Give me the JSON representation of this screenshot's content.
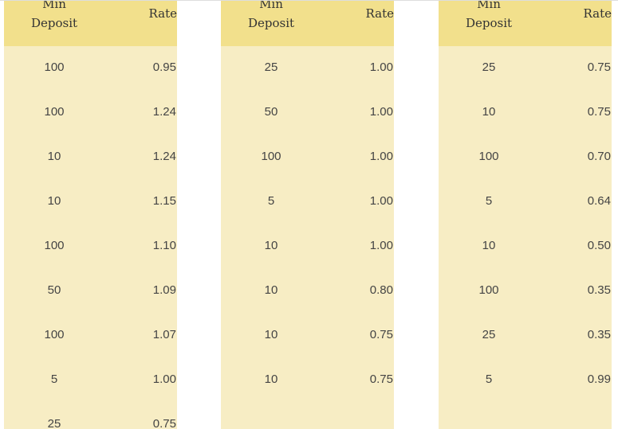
{
  "tables": [
    {
      "header": [
        "Min Deposit",
        "Rate"
      ],
      "rows": [
        [
          "100",
          "0.95"
        ],
        [
          "100",
          "1.24"
        ],
        [
          "10",
          "1.24"
        ],
        [
          "10",
          "1.15"
        ],
        [
          "100",
          "1.10"
        ],
        [
          "50",
          "1.09"
        ],
        [
          "100",
          "1.07"
        ],
        [
          "5",
          "1.00"
        ],
        [
          "25",
          "0.75"
        ]
      ]
    },
    {
      "header": [
        "Min Deposit",
        "Rate"
      ],
      "rows": [
        [
          "25",
          "1.00"
        ],
        [
          "50",
          "1.00"
        ],
        [
          "100",
          "1.00"
        ],
        [
          "5",
          "1.00"
        ],
        [
          "10",
          "1.00"
        ],
        [
          "10",
          "0.80"
        ],
        [
          "10",
          "0.75"
        ],
        [
          "10",
          "0.75"
        ]
      ]
    },
    {
      "header": [
        "Min Deposit",
        "Rate"
      ],
      "rows": [
        [
          "25",
          "0.75"
        ],
        [
          "10",
          "0.75"
        ],
        [
          "100",
          "0.70"
        ],
        [
          "5",
          "0.64"
        ],
        [
          "10",
          "0.50"
        ],
        [
          "100",
          "0.35"
        ],
        [
          "25",
          "0.35"
        ],
        [
          "5",
          "0.99"
        ]
      ]
    }
  ]
}
